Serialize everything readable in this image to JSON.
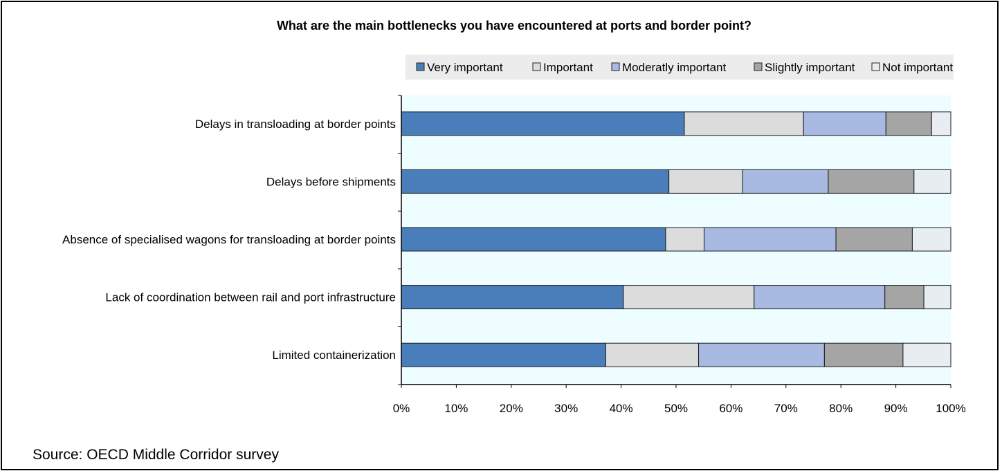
{
  "chart_data": {
    "type": "bar",
    "orientation": "horizontal",
    "stacked": true,
    "title": "What are the main bottlenecks you have encountered at ports and border point?",
    "categories": [
      "Delays in transloading at border points",
      "Delays before shipments",
      "Absence of specialised wagons for transloading at border points",
      "Lack of coordination between rail and port infrastructure",
      "Limited containerization"
    ],
    "series": [
      {
        "name": "Very important",
        "color": "#4a7ebb",
        "values": [
          51.5,
          48.7,
          48.1,
          40.4,
          37.2
        ]
      },
      {
        "name": "Important",
        "color": "#dcdcdc",
        "values": [
          21.7,
          13.4,
          7.0,
          23.8,
          16.9
        ]
      },
      {
        "name": "Moderatly important",
        "color": "#a8b9e2",
        "values": [
          15.0,
          15.6,
          24.0,
          23.8,
          22.9
        ]
      },
      {
        "name": "Slightly important",
        "color": "#a5a5a5",
        "values": [
          8.3,
          15.6,
          13.9,
          7.1,
          14.3
        ]
      },
      {
        "name": "Not important",
        "color": "#e8edf2",
        "values": [
          3.5,
          6.7,
          7.0,
          4.9,
          8.7
        ]
      }
    ],
    "xlim": [
      0,
      100
    ],
    "xticks": [
      "0%",
      "10%",
      "20%",
      "30%",
      "40%",
      "50%",
      "60%",
      "70%",
      "80%",
      "90%",
      "100%"
    ],
    "xlabel": "",
    "ylabel": "",
    "grid": false,
    "legend_position": "top-right",
    "plot_background": "#eefdff"
  },
  "source": "Source: OECD Middle Corridor survey"
}
